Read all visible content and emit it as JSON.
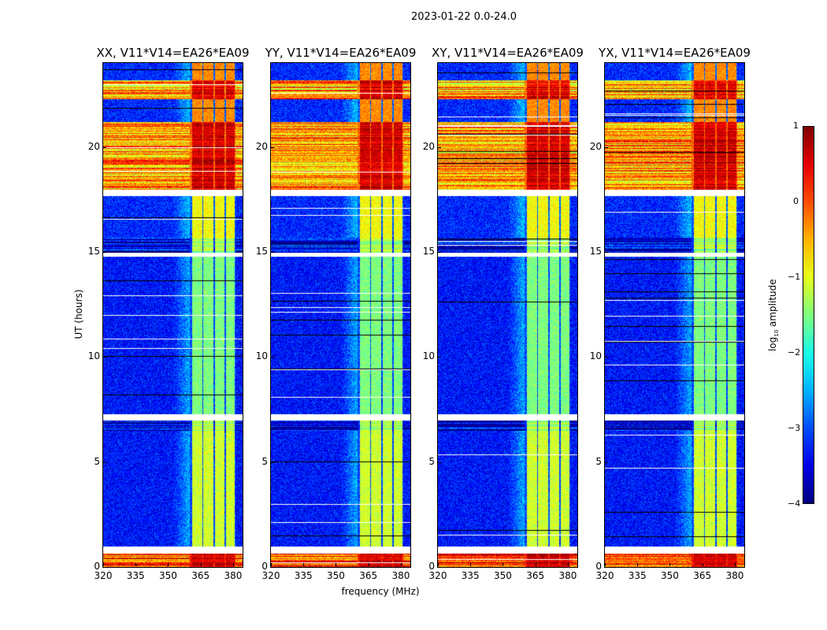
{
  "chart_data": {
    "type": "heatmap",
    "title": "2023-01-22 0.0-24.0",
    "xlabel": "frequency (MHz)",
    "ylabel": "UT (hours)",
    "xlim": [
      320,
      384.4
    ],
    "ylim": [
      0,
      24
    ],
    "xticks": [
      "320",
      "335",
      "350",
      "365",
      "380"
    ],
    "xtick_values": [
      320,
      335,
      350,
      365,
      380
    ],
    "yticks": [
      "0",
      "5",
      "10",
      "15",
      "20"
    ],
    "ytick_values": [
      0,
      5,
      10,
      15,
      20
    ],
    "panels": [
      {
        "title": "XX, V11*V14=EA26*EA09"
      },
      {
        "title": "YY, V11*V14=EA26*EA09"
      },
      {
        "title": "XY, V11*V14=EA26*EA09"
      },
      {
        "title": "YX, V11*V14=EA26*EA09"
      }
    ],
    "colorbar": {
      "label_main": "log",
      "label_sub": "10",
      "label_rest": " amplitude",
      "range": [
        -4,
        1
      ],
      "ticks": [
        "1",
        "0",
        "−1",
        "−2",
        "−3",
        "−4"
      ],
      "tick_values": [
        1,
        0,
        -1,
        -2,
        -3,
        -4
      ],
      "colormap": "jet"
    },
    "subbands_mhz": [
      [
        361,
        365.6
      ],
      [
        366.2,
        370.8
      ],
      [
        371.4,
        375.9
      ],
      [
        376.5,
        380.4
      ]
    ],
    "segments": [
      {
        "t0": 0.0,
        "t1": 0.65,
        "background": 0.0,
        "band": 0.6,
        "striped": true
      },
      {
        "t0": 0.65,
        "t1": 1.0,
        "flagged": true
      },
      {
        "t0": 1.0,
        "t1": 6.5,
        "background": -3.3,
        "band": -1.1
      },
      {
        "t0": 6.5,
        "t1": 7.0,
        "background": -3.6,
        "band": -1.3,
        "striped": true
      },
      {
        "t0": 7.0,
        "t1": 7.3,
        "flagged": true
      },
      {
        "t0": 7.3,
        "t1": 14.8,
        "background": -3.3,
        "band": -1.5
      },
      {
        "t0": 14.8,
        "t1": 15.0,
        "flagged": true
      },
      {
        "t0": 15.0,
        "t1": 15.7,
        "background": -3.5,
        "band": -1.3,
        "striped": true
      },
      {
        "t0": 15.7,
        "t1": 17.7,
        "background": -3.2,
        "band": -0.9
      },
      {
        "t0": 17.7,
        "t1": 18.0,
        "flagged": true
      },
      {
        "t0": 18.0,
        "t1": 21.2,
        "background": -0.4,
        "band": 0.6,
        "striped": true
      },
      {
        "t0": 21.2,
        "t1": 22.3,
        "background": -3.2,
        "band": -0.3
      },
      {
        "t0": 22.3,
        "t1": 23.2,
        "background": -0.5,
        "band": 0.5,
        "striped": true
      },
      {
        "t0": 23.2,
        "t1": 24.0,
        "background": -3.2,
        "band": -0.3
      }
    ]
  }
}
